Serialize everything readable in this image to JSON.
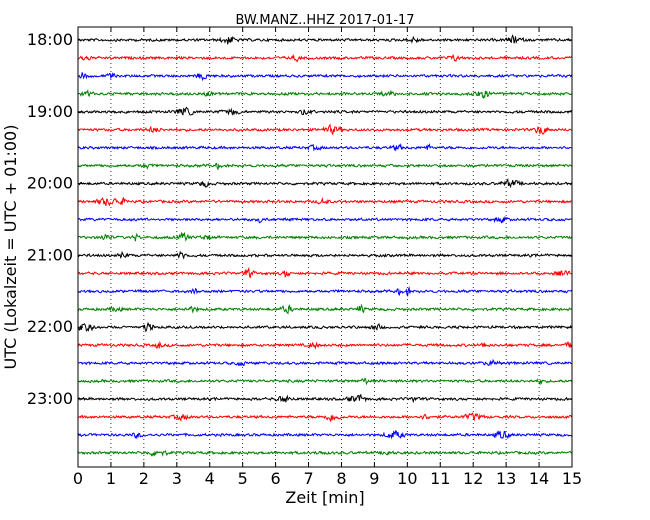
{
  "chart_data": {
    "type": "line",
    "title": "BW.MANZ..HHZ 2017-01-17",
    "xlabel": "Zeit  [min]",
    "ylabel": "UTC (Lokalzeit = UTC + 01:00)",
    "xlim": [
      0,
      15
    ],
    "x_ticks": [
      "0",
      "1",
      "2",
      "3",
      "4",
      "5",
      "6",
      "7",
      "8",
      "9",
      "10",
      "11",
      "12",
      "13",
      "14",
      "15"
    ],
    "y_tick_labels": [
      "18:00",
      "19:00",
      "20:00",
      "21:00",
      "22:00",
      "23:00"
    ],
    "trace_start_times": [
      "18:00",
      "18:15",
      "18:30",
      "18:45",
      "19:00",
      "19:15",
      "19:30",
      "19:45",
      "20:00",
      "20:15",
      "20:30",
      "20:45",
      "21:00",
      "21:15",
      "21:30",
      "21:45",
      "22:00",
      "22:15",
      "22:30",
      "22:45",
      "23:00",
      "23:15",
      "23:30",
      "23:45"
    ],
    "trace_colors": [
      "#000000",
      "#ff0000",
      "#0000ff",
      "#008000"
    ],
    "grid": "vertical dotted",
    "legend": "none"
  }
}
